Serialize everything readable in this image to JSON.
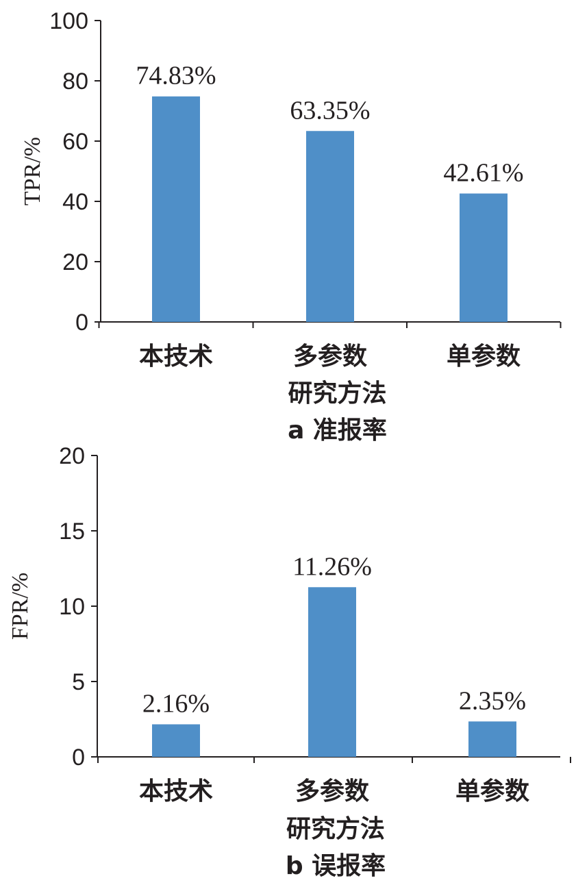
{
  "chart_data": [
    {
      "type": "bar",
      "categories": [
        "本技术",
        "多参数",
        "单参数"
      ],
      "values": [
        74.83,
        63.35,
        42.61
      ],
      "data_labels": [
        "74.83%",
        "63.35%",
        "42.61%"
      ],
      "ylabel": "TPR/%",
      "xlabel": "研究方法",
      "caption": "a 准报率",
      "ylim": [
        0,
        100
      ],
      "yticks": [
        0,
        20,
        40,
        60,
        80,
        100
      ],
      "ytick_labels": [
        "0",
        "20",
        "40",
        "60",
        "80",
        "100"
      ],
      "bar_color": "#4f8fc8",
      "grid": false
    },
    {
      "type": "bar",
      "categories": [
        "本技术",
        "多参数",
        "单参数"
      ],
      "values": [
        2.16,
        11.26,
        2.35
      ],
      "data_labels": [
        "2.16%",
        "11.26%",
        "2.35%"
      ],
      "ylabel": "FPR/%",
      "xlabel": "研究方法",
      "caption": "b 误报率",
      "ylim": [
        0,
        20
      ],
      "yticks": [
        0,
        5,
        10,
        15,
        20
      ],
      "ytick_labels": [
        "0",
        "5",
        "10",
        "15",
        "20"
      ],
      "bar_color": "#4f8fc8",
      "grid": false
    }
  ]
}
